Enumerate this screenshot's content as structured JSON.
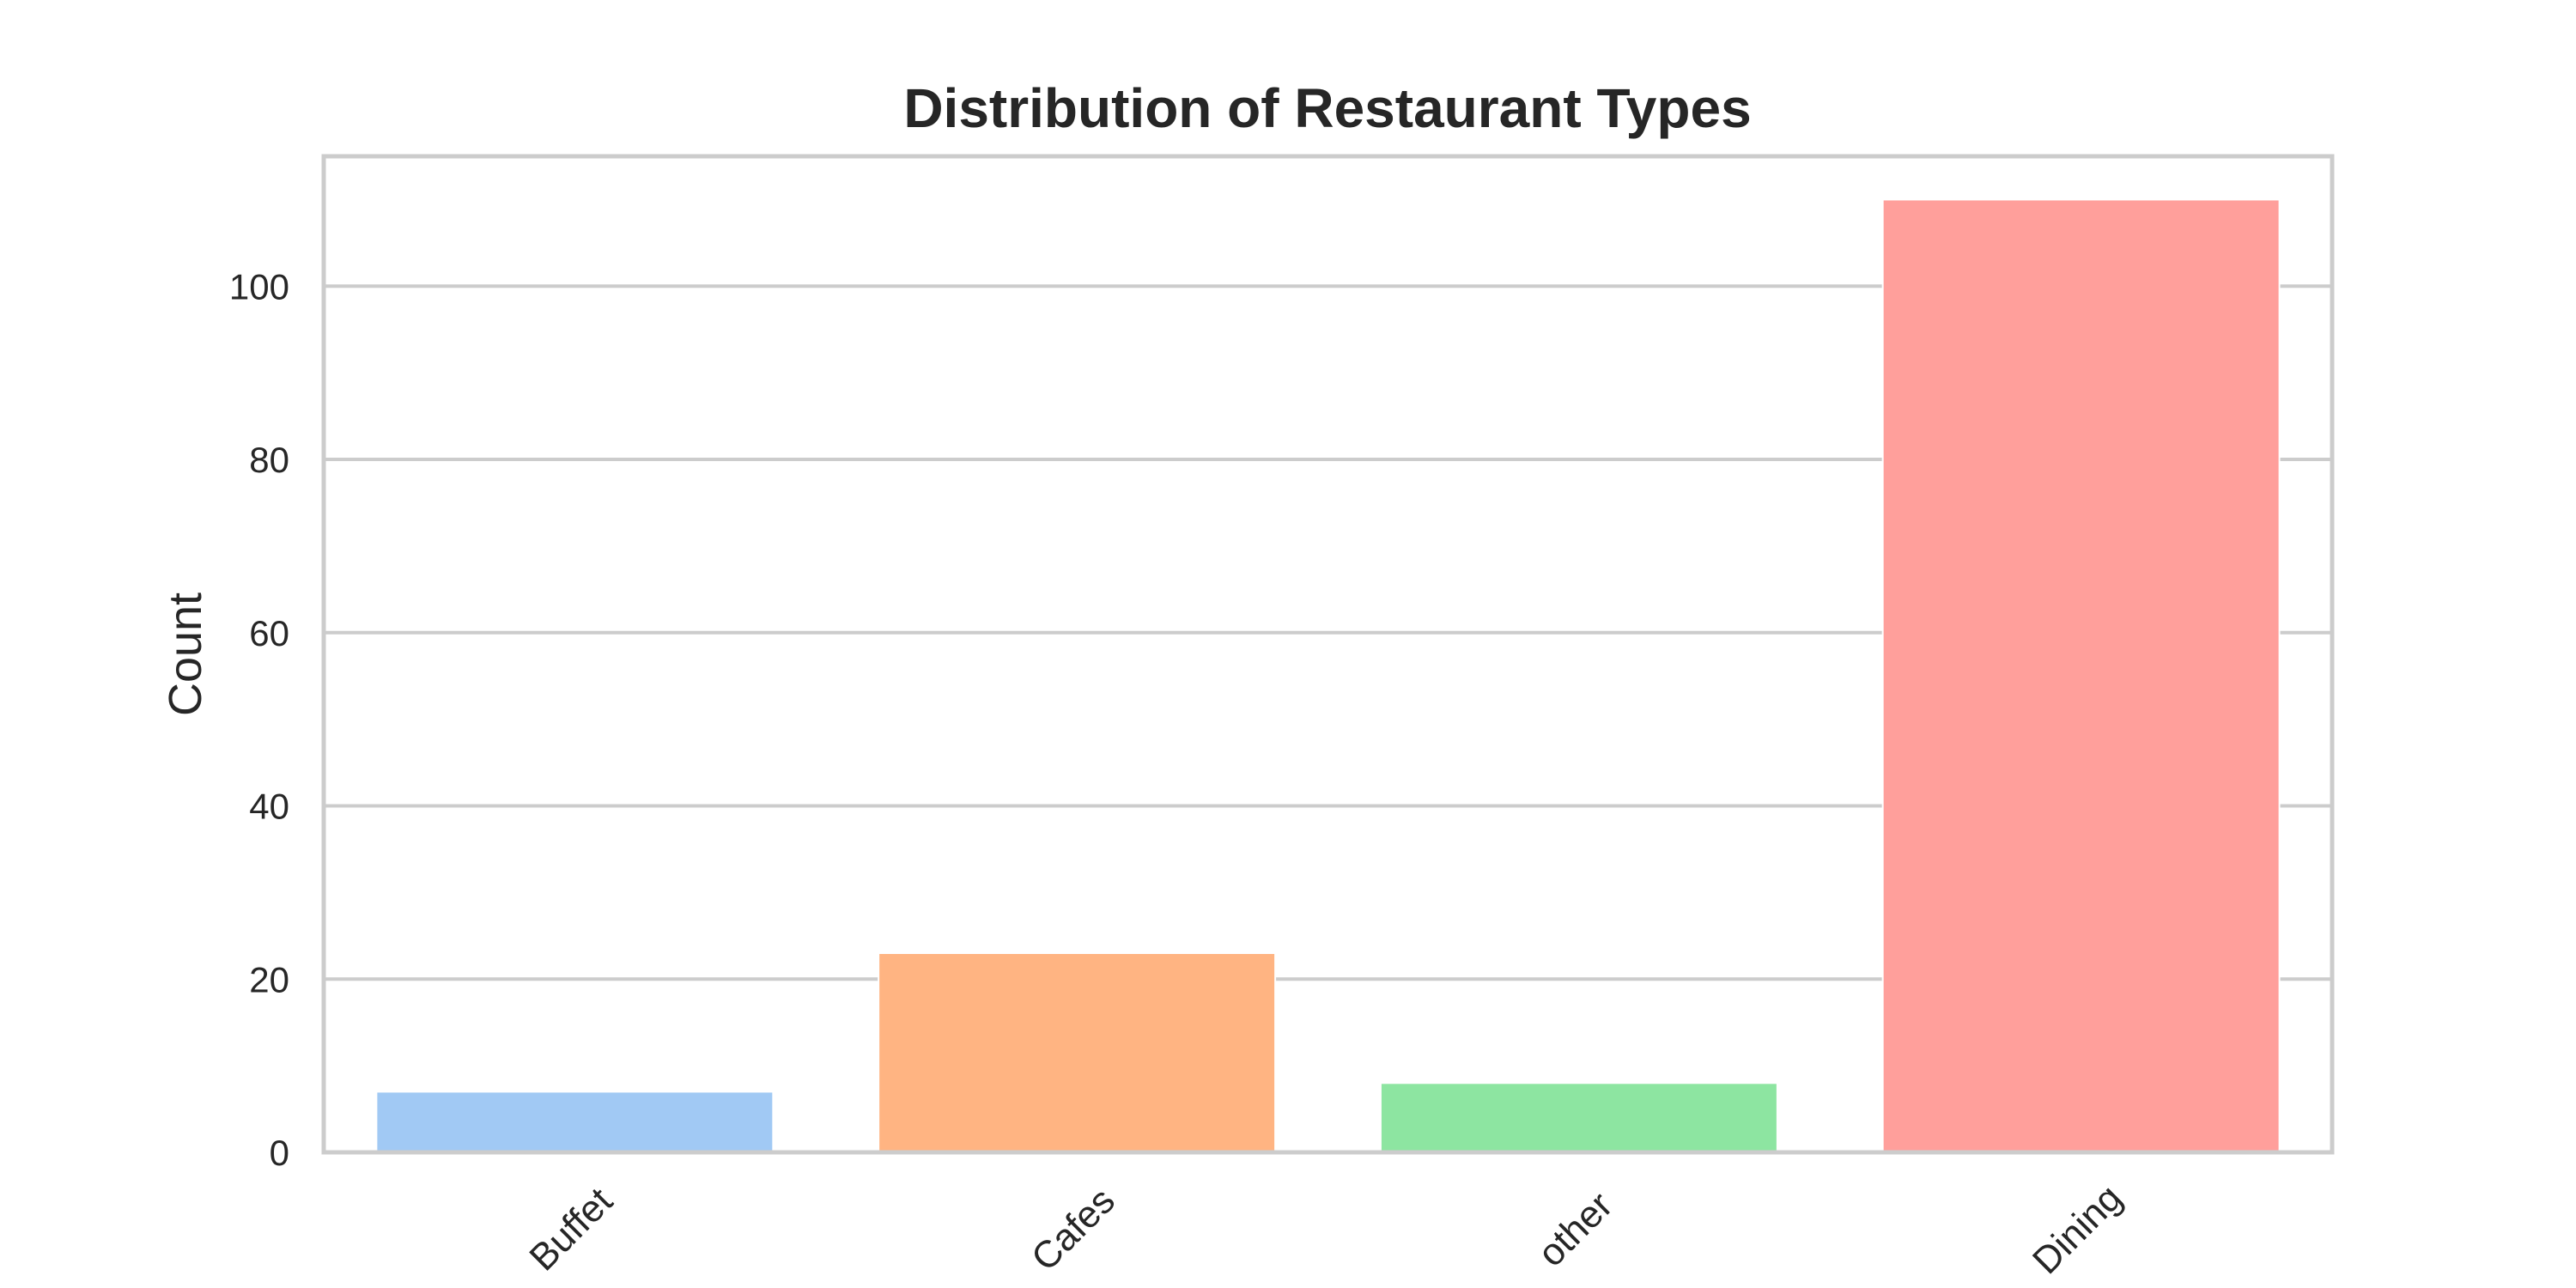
{
  "chart_data": {
    "type": "bar",
    "title": "Distribution of Restaurant Types",
    "xlabel": "",
    "ylabel": "Count",
    "categories": [
      "Buffet",
      "Cafes",
      "other",
      "Dining"
    ],
    "values": [
      7,
      23,
      8,
      110
    ],
    "ylim": [
      0,
      115
    ],
    "yticks": [
      0,
      20,
      40,
      60,
      80,
      100
    ],
    "grid": "horizontal",
    "colors": [
      "#a1c9f4",
      "#ffb482",
      "#8de5a1",
      "#ff9f9b"
    ]
  }
}
